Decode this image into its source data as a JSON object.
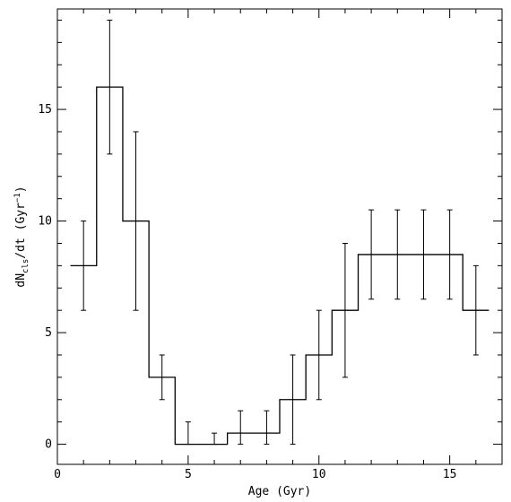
{
  "chart_data": {
    "type": "histogram",
    "title": "",
    "xlabel": "Age (Gyr)",
    "ylabel": "dN",
    "ylabel_sub": "cls",
    "ylabel_tail": "/dt (Gyr",
    "ylabel_sup": "−1",
    "ylabel_end": ")",
    "xlim": [
      0,
      17
    ],
    "ylim": [
      -0.9,
      19.5
    ],
    "x_ticks": [
      0,
      5,
      10,
      15
    ],
    "y_ticks": [
      0,
      5,
      10,
      15
    ],
    "grid": false,
    "bin_width": 1,
    "bins": [
      {
        "x": 1,
        "y": 8,
        "err_low": 6,
        "err_high": 10
      },
      {
        "x": 2,
        "y": 16,
        "err_low": 13,
        "err_high": 19
      },
      {
        "x": 3,
        "y": 10,
        "err_low": 6,
        "err_high": 14
      },
      {
        "x": 4,
        "y": 3,
        "err_low": 2,
        "err_high": 4
      },
      {
        "x": 5,
        "y": 0,
        "err_low": 0,
        "err_high": 1
      },
      {
        "x": 6,
        "y": 0,
        "err_low": 0,
        "err_high": 0.5
      },
      {
        "x": 7,
        "y": 0.5,
        "err_low": 0,
        "err_high": 1.5
      },
      {
        "x": 8,
        "y": 0.5,
        "err_low": 0,
        "err_high": 1.5
      },
      {
        "x": 9,
        "y": 2,
        "err_low": 0,
        "err_high": 4
      },
      {
        "x": 10,
        "y": 4,
        "err_low": 2,
        "err_high": 6
      },
      {
        "x": 11,
        "y": 6,
        "err_low": 3,
        "err_high": 9
      },
      {
        "x": 12,
        "y": 8.5,
        "err_low": 6.5,
        "err_high": 10.5
      },
      {
        "x": 13,
        "y": 8.5,
        "err_low": 6.5,
        "err_high": 10.5
      },
      {
        "x": 14,
        "y": 8.5,
        "err_low": 6.5,
        "err_high": 10.5
      },
      {
        "x": 15,
        "y": 8.5,
        "err_low": 6.5,
        "err_high": 10.5
      },
      {
        "x": 16,
        "y": 6,
        "err_low": 4,
        "err_high": 8
      }
    ]
  }
}
